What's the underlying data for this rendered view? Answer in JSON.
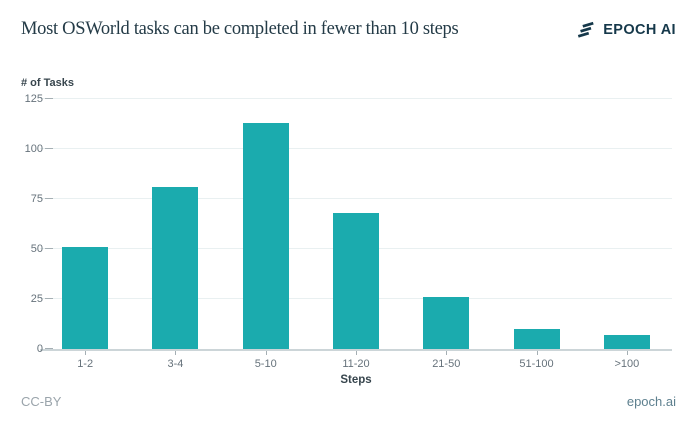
{
  "header": {
    "logo_text": "EPOCH AI"
  },
  "chart_data": {
    "type": "bar",
    "title": "Most OSWorld tasks can be completed in fewer than 10 steps",
    "categories": [
      "1-2",
      "3-4",
      "5-10",
      "11-20",
      "21-50",
      "51-100",
      ">100"
    ],
    "values": [
      51,
      81,
      113,
      68,
      26,
      10,
      7
    ],
    "xlabel": "Steps",
    "ylabel": "# of Tasks",
    "ylim": [
      0,
      125
    ],
    "yticks": [
      0,
      25,
      50,
      75,
      100,
      125
    ],
    "grid": true,
    "legend": "none",
    "bar_color": "#1babae"
  },
  "colors": {
    "bar": "#1babae",
    "title_text": "#243b47",
    "axis_label_text": "#37454d",
    "tick_text": "#66727b",
    "tick_mark": "#a5afb4",
    "gridline": "#e9f0f1",
    "axis_line": "#ccd5d8",
    "logo": "#15384a",
    "footer_license": "#9aa4ab",
    "footer_link": "#5e808f",
    "background": "#ffffff"
  },
  "footer": {
    "license": "CC-BY",
    "site": "epoch.ai"
  }
}
